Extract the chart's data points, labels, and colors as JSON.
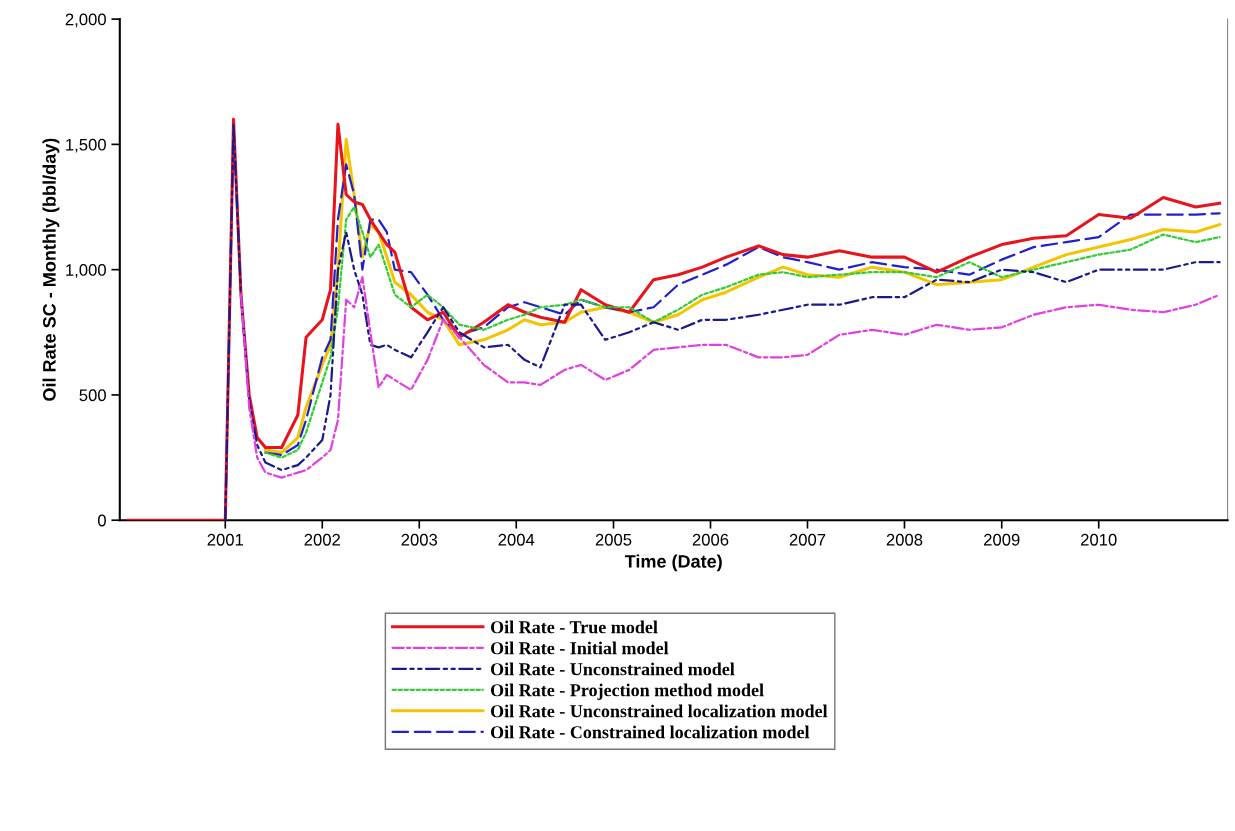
{
  "chart_data": {
    "type": "line",
    "xlabel": "Time (Date)",
    "ylabel": "Oil Rate SC - Monthly (bbl/day)",
    "x": [
      "2000-01",
      "2001-01",
      "2001-02",
      "2001-03",
      "2001-04",
      "2001-05",
      "2001-06",
      "2001-08",
      "2001-10",
      "2001-11",
      "2002-01",
      "2002-02",
      "2002-03",
      "2002-04",
      "2002-05",
      "2002-06",
      "2002-07",
      "2002-08",
      "2002-09",
      "2002-10",
      "2002-12",
      "2003-02",
      "2003-04",
      "2003-06",
      "2003-09",
      "2003-12",
      "2004-02",
      "2004-04",
      "2004-07",
      "2004-09",
      "2004-12",
      "2005-03",
      "2005-06",
      "2005-09",
      "2005-12",
      "2006-03",
      "2006-07",
      "2006-10",
      "2007-01",
      "2007-05",
      "2007-09",
      "2008-01",
      "2008-05",
      "2008-09",
      "2009-01",
      "2009-05",
      "2009-09",
      "2010-01",
      "2010-05",
      "2010-09",
      "2011-01",
      "2011-04"
    ],
    "series": [
      {
        "name": "Oil Rate - True model",
        "color": "#e8141c",
        "line_style": "solid",
        "values": [
          0,
          0,
          1600,
          900,
          500,
          330,
          290,
          290,
          420,
          730,
          800,
          920,
          1580,
          1300,
          1270,
          1260,
          1200,
          1150,
          1100,
          1070,
          850,
          800,
          830,
          730,
          790,
          860,
          830,
          810,
          790,
          920,
          860,
          830,
          960,
          980,
          1010,
          1050,
          1095,
          1060,
          1050,
          1075,
          1050,
          1050,
          990,
          1050,
          1100,
          1125,
          1135,
          1220,
          1205,
          1288,
          1250,
          1265
        ]
      },
      {
        "name": "Oil Rate - Initial model",
        "color": "#e040e0",
        "line_style": "dashdot",
        "x": [
          "2001-03",
          "2001-04",
          "2001-05",
          "2001-06",
          "2001-08",
          "2001-10",
          "2001-11",
          "2002-01",
          "2002-02",
          "2002-03",
          "2002-04",
          "2002-05",
          "2002-06",
          "2002-07",
          "2002-08",
          "2002-09",
          "2002-10",
          "2002-12",
          "2003-02",
          "2003-04",
          "2003-06",
          "2003-09",
          "2003-12",
          "2004-02",
          "2004-04",
          "2004-07",
          "2004-09",
          "2004-12",
          "2005-03",
          "2005-06",
          "2005-09",
          "2005-12",
          "2006-03",
          "2006-07",
          "2006-10",
          "2007-01",
          "2007-05",
          "2007-09",
          "2008-01",
          "2008-05",
          "2008-09",
          "2009-01",
          "2009-05",
          "2009-09",
          "2010-01",
          "2010-05",
          "2010-09",
          "2011-01",
          "2011-04"
        ],
        "values": [
          900,
          450,
          250,
          190,
          170,
          190,
          200,
          250,
          280,
          400,
          880,
          850,
          970,
          750,
          530,
          580,
          560,
          520,
          640,
          800,
          730,
          620,
          550,
          550,
          540,
          600,
          620,
          560,
          600,
          680,
          690,
          700,
          700,
          650,
          650,
          660,
          740,
          760,
          740,
          780,
          760,
          770,
          820,
          850,
          860,
          840,
          830,
          860,
          900
        ]
      },
      {
        "name": "Oil Rate - Unconstrained model",
        "color": "#1a1a8c",
        "line_style": "dashdotdot",
        "values": [
          null,
          0,
          1580,
          900,
          480,
          300,
          230,
          200,
          220,
          250,
          320,
          500,
          1000,
          1150,
          1000,
          900,
          700,
          690,
          700,
          680,
          650,
          750,
          850,
          750,
          690,
          700,
          640,
          610,
          860,
          860,
          720,
          750,
          790,
          760,
          800,
          800,
          820,
          840,
          860,
          860,
          890,
          890,
          960,
          950,
          1000,
          990,
          950,
          1000,
          1000,
          1000,
          1030,
          1030
        ]
      },
      {
        "name": "Oil Rate - Projection method model",
        "color": "#33cc33",
        "line_style": "dotted",
        "x": [
          "2001-06",
          "2001-08",
          "2001-10",
          "2001-11",
          "2002-01",
          "2002-02",
          "2002-03",
          "2002-04",
          "2002-05",
          "2002-06",
          "2002-07",
          "2002-08",
          "2002-09",
          "2002-10",
          "2002-12",
          "2003-02",
          "2003-04",
          "2003-06",
          "2003-09",
          "2003-12",
          "2004-02",
          "2004-04",
          "2004-07",
          "2004-09",
          "2004-12",
          "2005-03",
          "2005-06",
          "2005-09",
          "2005-12",
          "2006-03",
          "2006-07",
          "2006-10",
          "2007-01",
          "2007-05",
          "2007-09",
          "2008-01",
          "2008-05",
          "2008-09",
          "2009-01",
          "2009-05",
          "2009-09",
          "2010-01",
          "2010-05",
          "2010-09",
          "2011-01",
          "2011-04"
        ],
        "values": [
          270,
          250,
          280,
          350,
          550,
          650,
          850,
          1200,
          1250,
          1150,
          1050,
          1100,
          1000,
          900,
          850,
          900,
          850,
          780,
          760,
          800,
          820,
          850,
          860,
          880,
          850,
          850,
          790,
          840,
          900,
          930,
          980,
          990,
          970,
          980,
          990,
          990,
          970,
          1030,
          970,
          1000,
          1030,
          1060,
          1080,
          1140,
          1110,
          1130
        ]
      },
      {
        "name": "Oil Rate - Unconstrained localization model",
        "color": "#f5c400",
        "line_style": "solid",
        "values": [
          null,
          null,
          null,
          null,
          null,
          null,
          280,
          270,
          330,
          450,
          620,
          700,
          1000,
          1520,
          1300,
          1050,
          1180,
          1150,
          1050,
          950,
          900,
          830,
          800,
          700,
          720,
          760,
          800,
          780,
          790,
          830,
          850,
          830,
          790,
          820,
          880,
          910,
          970,
          1010,
          980,
          970,
          1010,
          990,
          940,
          950,
          960,
          1010,
          1060,
          1090,
          1120,
          1160,
          1150,
          1180
        ]
      },
      {
        "name": "Oil Rate - Constrained localization model",
        "color": "#2020d0",
        "line_style": "dashed",
        "values": [
          null,
          null,
          null,
          null,
          null,
          null,
          270,
          260,
          300,
          400,
          650,
          720,
          1200,
          1420,
          1300,
          1000,
          1200,
          1200,
          1150,
          1000,
          990,
          900,
          800,
          740,
          770,
          850,
          870,
          850,
          820,
          880,
          850,
          830,
          850,
          940,
          980,
          1020,
          1090,
          1050,
          1030,
          1000,
          1030,
          1010,
          1000,
          980,
          1040,
          1090,
          1110,
          1130,
          1220,
          1220,
          1220,
          1225
        ]
      }
    ],
    "xlim": [
      "1999-12",
      "2011-05"
    ],
    "xticks": [
      {
        "value": "2001",
        "label": "2001"
      },
      {
        "value": "2002",
        "label": "2002"
      },
      {
        "value": "2003",
        "label": "2003"
      },
      {
        "value": "2004",
        "label": "2004"
      },
      {
        "value": "2005",
        "label": "2005"
      },
      {
        "value": "2006",
        "label": "2006"
      },
      {
        "value": "2007",
        "label": "2007"
      },
      {
        "value": "2008",
        "label": "2008"
      },
      {
        "value": "2009",
        "label": "2009"
      },
      {
        "value": "2010",
        "label": "2010"
      }
    ],
    "ylim": [
      0,
      2000
    ],
    "yticks": [
      0,
      500,
      {
        "value": 1000,
        "label": "1,000"
      },
      {
        "value": 1500,
        "label": "1,500"
      },
      {
        "value": 2000,
        "label": "2,000"
      }
    ],
    "grid": false,
    "legend": "bottom"
  }
}
